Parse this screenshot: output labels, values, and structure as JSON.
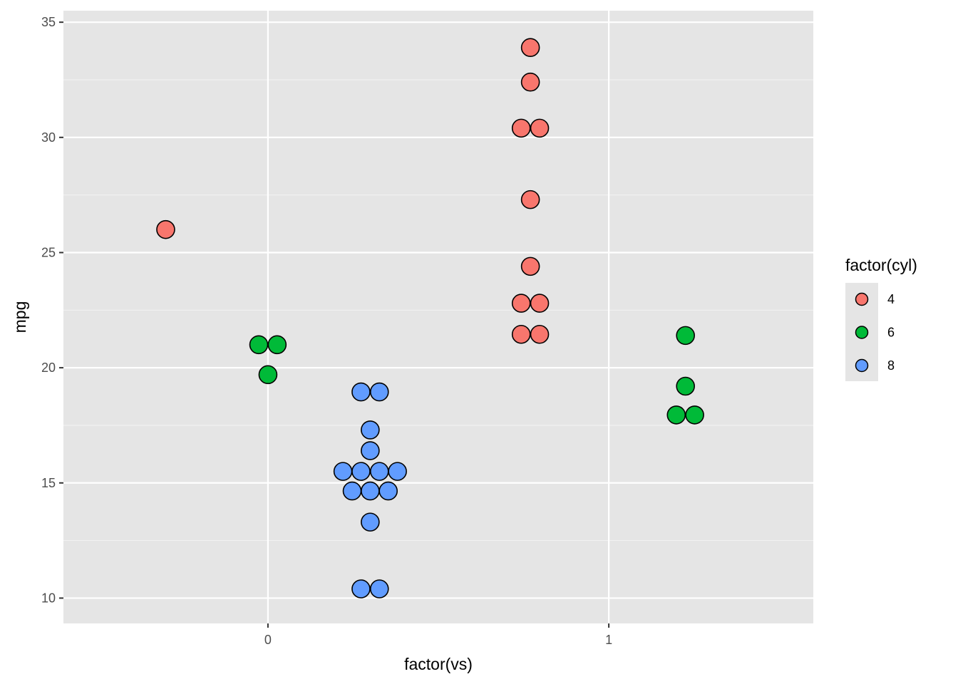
{
  "chart_data": {
    "type": "scatter",
    "subtype": "dotplot",
    "xlabel": "factor(vs)",
    "ylabel": "mpg",
    "x_ticks": [
      "0",
      "1"
    ],
    "y_ticks": [
      10,
      15,
      20,
      25,
      30,
      35
    ],
    "ylim": [
      8.9,
      35.5
    ],
    "grid": true,
    "panel_background": "#e5e5e5",
    "legend": {
      "title": "factor(cyl)",
      "position": "right",
      "entries": [
        {
          "label": "4",
          "color": "#F8766D"
        },
        {
          "label": "6",
          "color": "#00BA38"
        },
        {
          "label": "8",
          "color": "#619CFF"
        }
      ]
    },
    "points": [
      {
        "x": -0.3,
        "y": 26.0,
        "cyl": "4"
      },
      {
        "x": -0.027,
        "y": 21.0,
        "cyl": "6"
      },
      {
        "x": 0.027,
        "y": 21.0,
        "cyl": "6"
      },
      {
        "x": 0.0,
        "y": 19.7,
        "cyl": "6"
      },
      {
        "x": 0.273,
        "y": 18.95,
        "cyl": "8"
      },
      {
        "x": 0.327,
        "y": 18.95,
        "cyl": "8"
      },
      {
        "x": 0.3,
        "y": 17.3,
        "cyl": "8"
      },
      {
        "x": 0.3,
        "y": 16.4,
        "cyl": "8"
      },
      {
        "x": 0.22,
        "y": 15.5,
        "cyl": "8"
      },
      {
        "x": 0.273,
        "y": 15.5,
        "cyl": "8"
      },
      {
        "x": 0.327,
        "y": 15.5,
        "cyl": "8"
      },
      {
        "x": 0.38,
        "y": 15.5,
        "cyl": "8"
      },
      {
        "x": 0.247,
        "y": 14.65,
        "cyl": "8"
      },
      {
        "x": 0.3,
        "y": 14.65,
        "cyl": "8"
      },
      {
        "x": 0.353,
        "y": 14.65,
        "cyl": "8"
      },
      {
        "x": 0.3,
        "y": 13.3,
        "cyl": "8"
      },
      {
        "x": 0.273,
        "y": 10.4,
        "cyl": "8"
      },
      {
        "x": 0.327,
        "y": 10.4,
        "cyl": "8"
      },
      {
        "x": 0.77,
        "y": 33.9,
        "cyl": "4"
      },
      {
        "x": 0.77,
        "y": 32.4,
        "cyl": "4"
      },
      {
        "x": 0.743,
        "y": 30.4,
        "cyl": "4"
      },
      {
        "x": 0.797,
        "y": 30.4,
        "cyl": "4"
      },
      {
        "x": 0.77,
        "y": 27.3,
        "cyl": "4"
      },
      {
        "x": 0.77,
        "y": 24.4,
        "cyl": "4"
      },
      {
        "x": 0.743,
        "y": 22.8,
        "cyl": "4"
      },
      {
        "x": 0.797,
        "y": 22.8,
        "cyl": "4"
      },
      {
        "x": 0.743,
        "y": 21.45,
        "cyl": "4"
      },
      {
        "x": 0.797,
        "y": 21.45,
        "cyl": "4"
      },
      {
        "x": 1.225,
        "y": 21.4,
        "cyl": "6"
      },
      {
        "x": 1.225,
        "y": 19.2,
        "cyl": "6"
      },
      {
        "x": 1.198,
        "y": 17.95,
        "cyl": "6"
      },
      {
        "x": 1.252,
        "y": 17.95,
        "cyl": "6"
      }
    ]
  }
}
